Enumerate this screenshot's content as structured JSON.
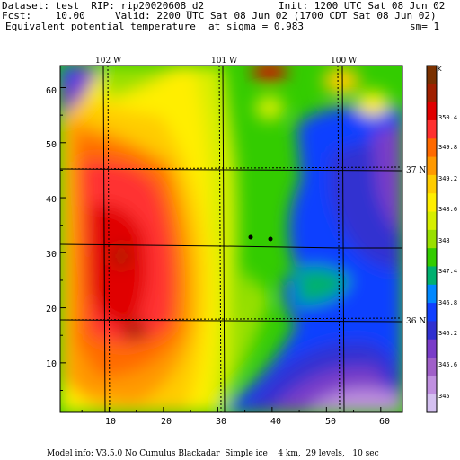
{
  "header": {
    "dataset": "Dataset: test  RIP: rip20020608_d2",
    "init": "Init: 1200 UTC Sat 08 Jun 02",
    "fcst": "Fcst:    10.00",
    "valid": "Valid: 2200 UTC Sat 08 Jun 02 (1700 CDT Sat 08 Jun 02)",
    "field": "Equivalent potential temperature",
    "sigma": "at sigma = 0.983",
    "sm": "sm= 1"
  },
  "axes": {
    "x_ticks": [
      "10",
      "20",
      "30",
      "40",
      "50",
      "60"
    ],
    "y_ticks": [
      "10",
      "20",
      "30",
      "40",
      "50",
      "60"
    ],
    "x_range": [
      1,
      64
    ],
    "y_range": [
      1,
      64
    ]
  },
  "geo_labels": {
    "lon_top": [
      "102 W",
      "101 W",
      "100 W"
    ],
    "lat_right": [
      "37 N",
      "36 N"
    ]
  },
  "colorbar": {
    "unit": "K",
    "labels": [
      "350.4",
      "349.8",
      "349.2",
      "348.6",
      "348",
      "347.4",
      "346.8",
      "346.2",
      "345.6",
      "345"
    ],
    "colors": [
      "#7a3000",
      "#a02000",
      "#e00000",
      "#ff3030",
      "#ff6a00",
      "#ff9900",
      "#ffcc00",
      "#ffee00",
      "#d6ee00",
      "#99e000",
      "#33cc00",
      "#00b070",
      "#0088ff",
      "#1040ff",
      "#3030d0",
      "#7a3cc8",
      "#a060c8",
      "#c090e0",
      "#d4c0f0"
    ]
  },
  "footer": "Model info: V3.5.0 No Cumulus Blackadar  Simple ice    4 km,  29 levels,   10 sec"
}
